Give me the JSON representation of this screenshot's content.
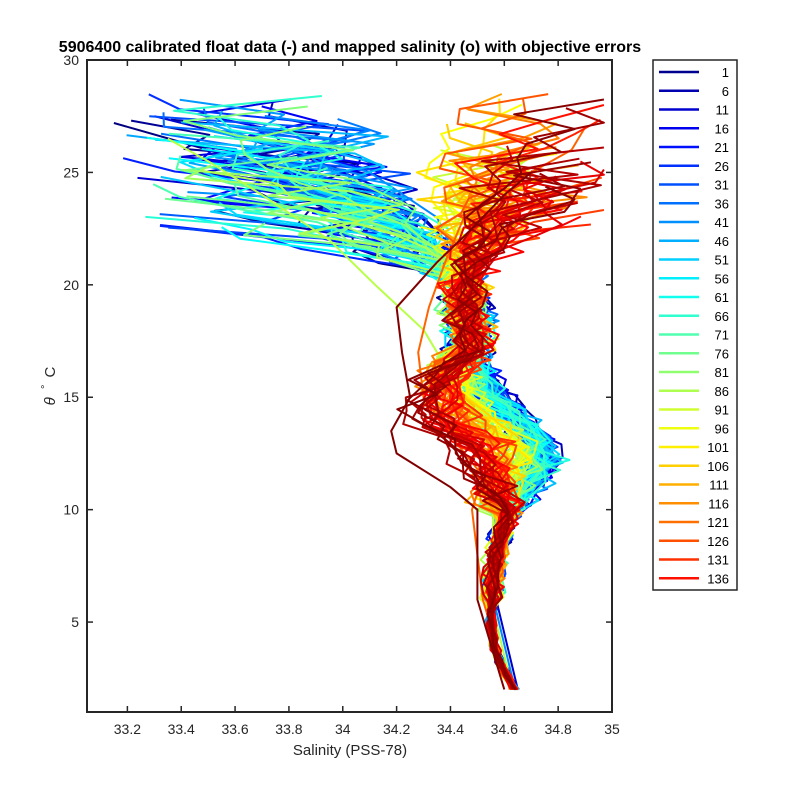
{
  "chart_data": {
    "type": "line",
    "title": "5906400 calibrated float data (-) and mapped salinity (o) with objective errors",
    "xlabel": "Salinity (PSS-78)",
    "ylabel_symbol": "θ",
    "ylabel_degree": "°",
    "ylabel_unit": "C",
    "xlim": [
      33.05,
      35.0
    ],
    "ylim": [
      1.0,
      30.0
    ],
    "xticks": [
      "33.2",
      "33.4",
      "33.6",
      "33.8",
      "34",
      "34.2",
      "34.4",
      "34.6",
      "34.8",
      "35"
    ],
    "xtick_values": [
      33.2,
      33.4,
      33.6,
      33.8,
      34.0,
      34.2,
      34.4,
      34.6,
      34.8,
      35.0
    ],
    "yticks": [
      "5",
      "10",
      "15",
      "20",
      "25",
      "30"
    ],
    "ytick_values": [
      5,
      10,
      15,
      20,
      25,
      30
    ],
    "colormap": "jet",
    "legend_placement": "outside-right",
    "legend_entries": [
      "1",
      "6",
      "11",
      "16",
      "21",
      "26",
      "31",
      "36",
      "41",
      "46",
      "51",
      "56",
      "61",
      "66",
      "71",
      "76",
      "81",
      "86",
      "91",
      "96",
      "101",
      "106",
      "111",
      "116",
      "121",
      "126",
      "131",
      "136"
    ],
    "legend_colors": [
      "#00008f",
      "#0000af",
      "#0000cf",
      "#0000ef",
      "#0010ff",
      "#0030ff",
      "#0050ff",
      "#0070ff",
      "#0090ff",
      "#00afff",
      "#00cfff",
      "#00efff",
      "#10ffef",
      "#30ffcf",
      "#50ffaf",
      "#70ff8f",
      "#8fff70",
      "#afff50",
      "#cfff30",
      "#efff10",
      "#ffef00",
      "#ffcf00",
      "#ffaf00",
      "#ff8f00",
      "#ff7000",
      "#ff5000",
      "#ff3000",
      "#ff1000"
    ],
    "profile_count": 136,
    "profile_template": {
      "theta": [
        2.0,
        3.0,
        4.0,
        5.0,
        6.0,
        7.0,
        8.0,
        9.0,
        10.0,
        11.0,
        12.0,
        13.0,
        14.0,
        15.0,
        16.0,
        17.0,
        18.0,
        19.0,
        20.0,
        21.0,
        22.0,
        23.0,
        24.0,
        25.0,
        26.0
      ],
      "salinity": [
        34.64,
        34.59,
        34.56,
        34.55,
        34.555,
        34.56,
        34.57,
        34.59,
        34.62,
        34.67,
        34.74,
        34.72,
        34.63,
        34.55,
        34.5,
        34.48,
        34.47,
        34.46,
        34.45,
        34.44,
        34.42,
        34.4,
        34.36,
        34.3,
        34.2
      ]
    },
    "profiles": [
      {
        "name": "1",
        "theta": [
          2.0,
          4.0,
          6.0,
          8.0,
          10.0,
          11.0,
          12.0,
          13.0,
          14.0,
          15.0,
          16.0,
          17.0,
          18.0,
          19.0,
          20.0,
          22.0,
          23.0,
          24.0,
          25.0,
          26.0,
          27.2
        ],
        "salinity": [
          34.65,
          34.57,
          34.56,
          34.58,
          34.62,
          34.7,
          34.78,
          34.75,
          34.67,
          34.58,
          34.52,
          34.49,
          34.47,
          34.46,
          34.44,
          34.38,
          34.3,
          34.1,
          33.8,
          33.5,
          33.15
        ]
      },
      {
        "name": "11",
        "theta": [
          2.0,
          6.0,
          10.0,
          12.0,
          13.0,
          14.0,
          16.0,
          18.0,
          20.0,
          22.0,
          24.0,
          26.0,
          27.5
        ],
        "salinity": [
          34.65,
          34.57,
          34.64,
          34.8,
          34.76,
          34.66,
          34.53,
          34.47,
          34.44,
          34.38,
          34.2,
          33.8,
          33.3
        ]
      },
      {
        "name": "36",
        "theta": [
          2.0,
          6.0,
          10.0,
          12.0,
          13.0,
          15.0,
          17.0,
          19.0,
          21.0,
          23.0,
          25.0,
          27.0
        ],
        "salinity": [
          34.64,
          34.56,
          34.62,
          34.78,
          34.72,
          34.58,
          34.5,
          34.47,
          34.43,
          34.35,
          34.1,
          33.5
        ]
      },
      {
        "name": "76",
        "theta": [
          2.0,
          6.0,
          10.0,
          11.5,
          12.5,
          14.0,
          16.0,
          18.0,
          20.0,
          22.0,
          24.0,
          25.5,
          26.5
        ],
        "salinity": [
          34.63,
          34.55,
          34.56,
          34.62,
          34.65,
          34.5,
          34.4,
          34.3,
          34.12,
          33.95,
          33.7,
          33.5,
          33.35
        ]
      },
      {
        "name": "106",
        "theta": [
          2.0,
          6.0,
          10.0,
          11.5,
          13.0,
          15.0,
          17.0,
          19.0,
          21.0,
          23.0,
          24.0,
          25.0,
          26.0,
          27.0
        ],
        "salinity": [
          34.62,
          34.52,
          34.48,
          34.52,
          34.42,
          34.3,
          34.28,
          34.32,
          34.38,
          34.45,
          34.55,
          34.7,
          34.85,
          34.9
        ]
      },
      {
        "name": "136",
        "theta": [
          2.0,
          6.0,
          10.0,
          11.0,
          12.5,
          13.5,
          15.0,
          17.0,
          19.0,
          21.0,
          22.5,
          24.0,
          25.0
        ],
        "salinity": [
          34.6,
          34.5,
          34.5,
          34.4,
          34.2,
          34.18,
          34.25,
          34.22,
          34.2,
          34.35,
          34.48,
          34.6,
          34.7
        ]
      }
    ]
  }
}
